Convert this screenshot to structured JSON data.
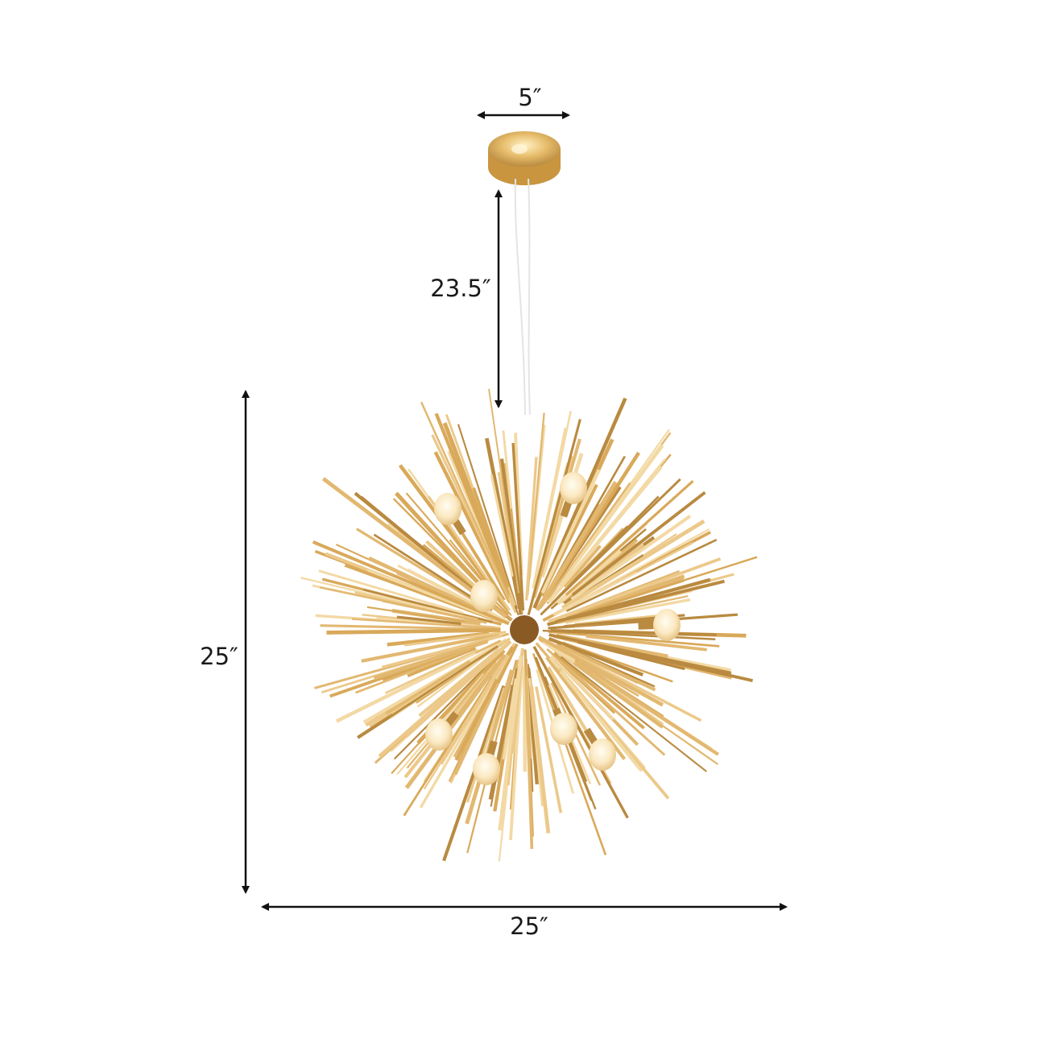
{
  "dimensions": {
    "canopy_width": "5″",
    "drop_length": "23.5″",
    "height": "25″",
    "width": "25″"
  },
  "colors": {
    "gold": "#e2b871",
    "gold_light": "#f3d9a4",
    "gold_dark": "#b98a40",
    "arrow": "#111111"
  }
}
